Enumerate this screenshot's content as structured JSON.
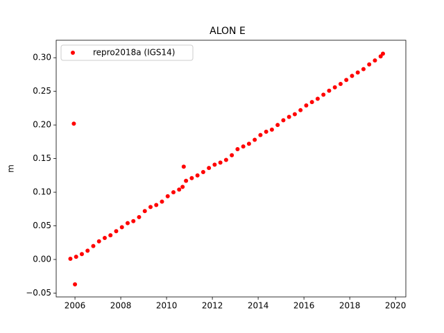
{
  "chart_data": {
    "type": "scatter",
    "title": "ALON E",
    "y_label": "m",
    "legend": "upper left",
    "x": [
      2005.8,
      2005.95,
      2006.0,
      2006.05,
      2006.3,
      2006.55,
      2006.8,
      2007.05,
      2007.3,
      2007.55,
      2007.8,
      2008.05,
      2008.3,
      2008.55,
      2008.8,
      2009.05,
      2009.3,
      2009.55,
      2009.8,
      2010.05,
      2010.3,
      2010.55,
      2010.7,
      2010.75,
      2010.85,
      2011.1,
      2011.35,
      2011.6,
      2011.85,
      2012.1,
      2012.35,
      2012.6,
      2012.85,
      2013.1,
      2013.35,
      2013.6,
      2013.85,
      2014.1,
      2014.35,
      2014.6,
      2014.85,
      2015.1,
      2015.35,
      2015.6,
      2015.85,
      2016.1,
      2016.35,
      2016.6,
      2016.85,
      2017.1,
      2017.35,
      2017.6,
      2017.85,
      2018.1,
      2018.35,
      2018.6,
      2018.85,
      2019.1,
      2019.35,
      2019.45
    ],
    "series": [
      {
        "name": "repro2018a (IGS14)",
        "color": "#ff0000",
        "values": [
          0.001,
          0.202,
          -0.037,
          0.004,
          0.008,
          0.013,
          0.02,
          0.027,
          0.032,
          0.036,
          0.042,
          0.048,
          0.054,
          0.057,
          0.063,
          0.072,
          0.078,
          0.081,
          0.086,
          0.094,
          0.1,
          0.104,
          0.108,
          0.138,
          0.117,
          0.121,
          0.125,
          0.13,
          0.136,
          0.141,
          0.144,
          0.148,
          0.155,
          0.164,
          0.168,
          0.172,
          0.178,
          0.185,
          0.19,
          0.193,
          0.2,
          0.207,
          0.212,
          0.216,
          0.222,
          0.229,
          0.234,
          0.239,
          0.245,
          0.251,
          0.256,
          0.261,
          0.267,
          0.273,
          0.278,
          0.283,
          0.29,
          0.296,
          0.302,
          0.306
        ]
      }
    ],
    "xlim": [
      2005.18,
      2020.45
    ],
    "xticks": [
      2006,
      2008,
      2010,
      2012,
      2014,
      2016,
      2018,
      2020
    ],
    "ylim": [
      -0.0557,
      0.326
    ],
    "yticks": [
      {
        "value": -0.05,
        "label": "−0.05"
      },
      {
        "value": 0,
        "label": "0.00"
      },
      {
        "value": 0.05,
        "label": "0.05"
      },
      {
        "value": 0.1,
        "label": "0.10"
      },
      {
        "value": 0.15,
        "label": "0.15"
      },
      {
        "value": 0.2,
        "label": "0.20"
      },
      {
        "value": 0.25,
        "label": "0.25"
      },
      {
        "value": 0.3,
        "label": "0.30"
      }
    ]
  }
}
